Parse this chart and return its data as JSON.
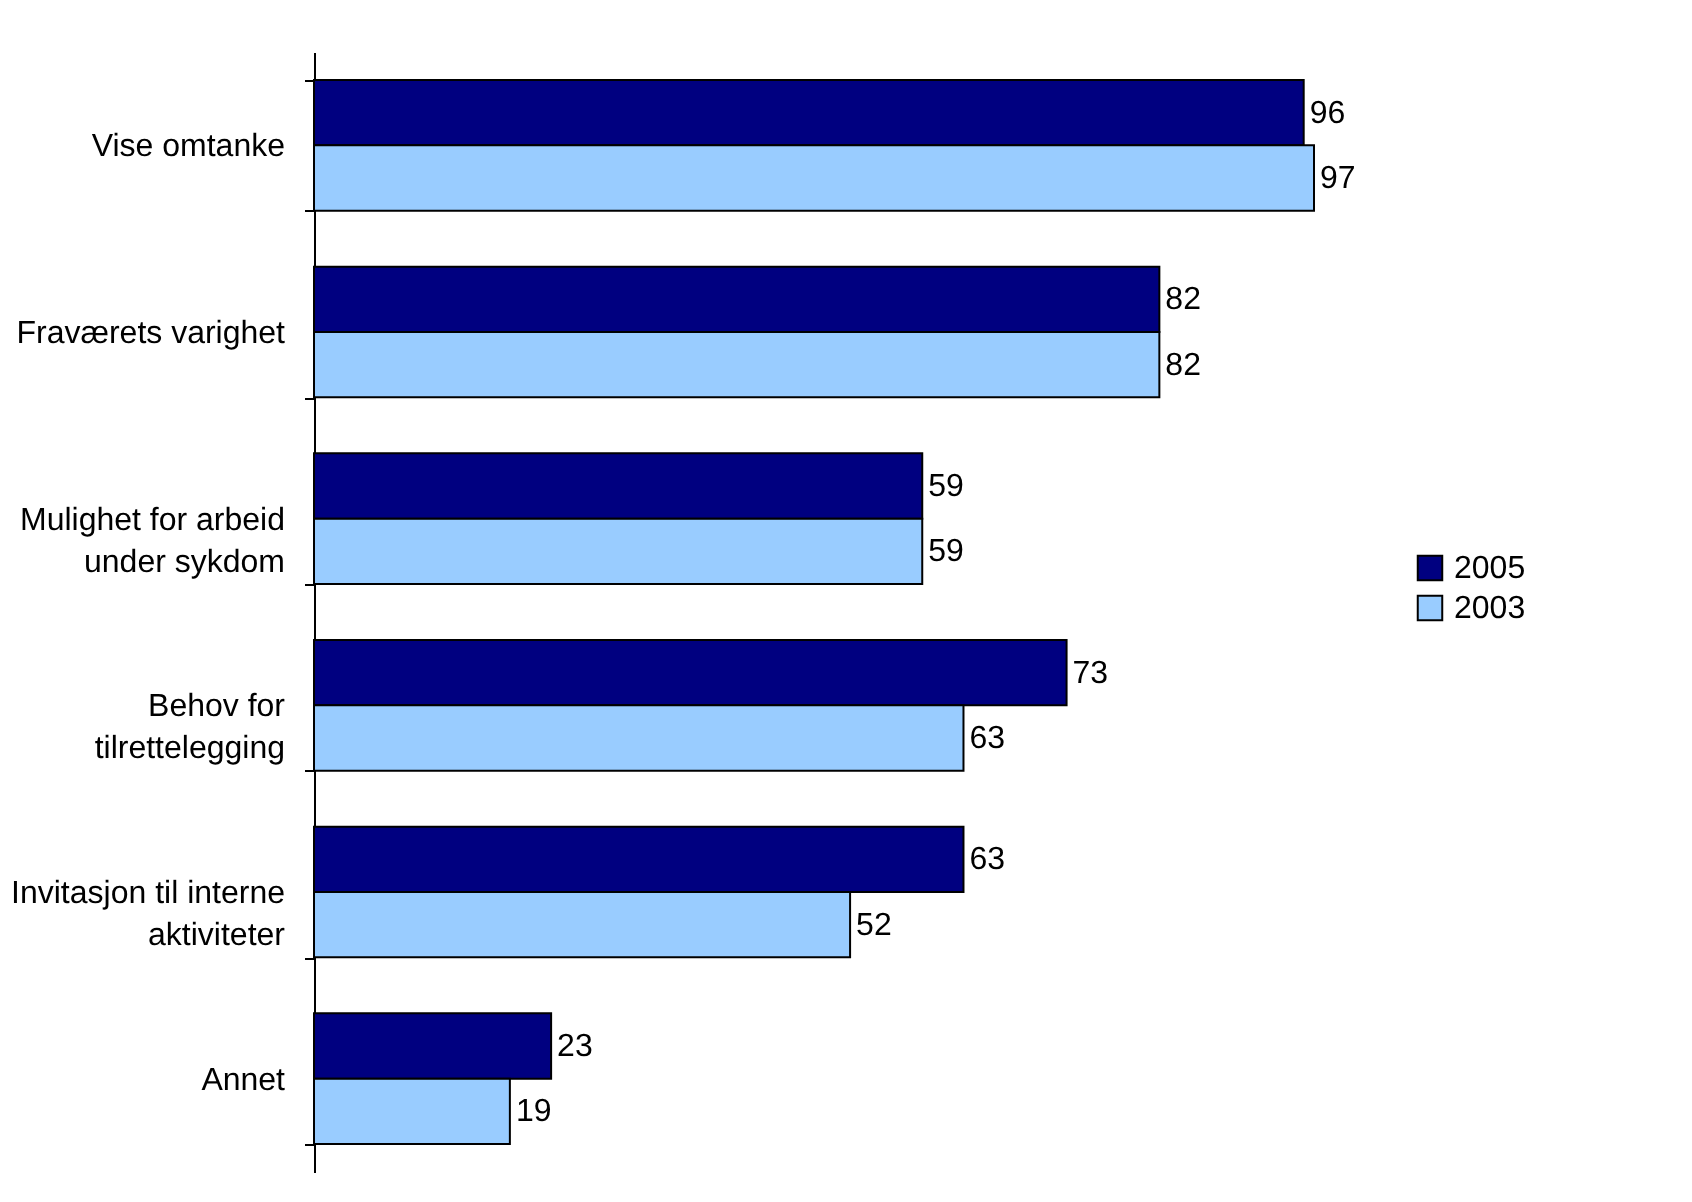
{
  "chart_data": {
    "type": "bar",
    "orientation": "horizontal",
    "data_labels": true,
    "legend": "right",
    "categories": [
      "Vise omtanke",
      "Fraværets varighet",
      "Mulighet for arbeid under sykdom",
      "Behov for tilrettelegging",
      "Invitasjon til interne aktiviteter",
      "Annet"
    ],
    "series": [
      {
        "name": "2005",
        "color": "#000080",
        "values": [
          96,
          82,
          59,
          73,
          63,
          23
        ]
      },
      {
        "name": "2003",
        "color": "#99ccff",
        "values": [
          97,
          82,
          59,
          63,
          52,
          19
        ]
      }
    ]
  }
}
